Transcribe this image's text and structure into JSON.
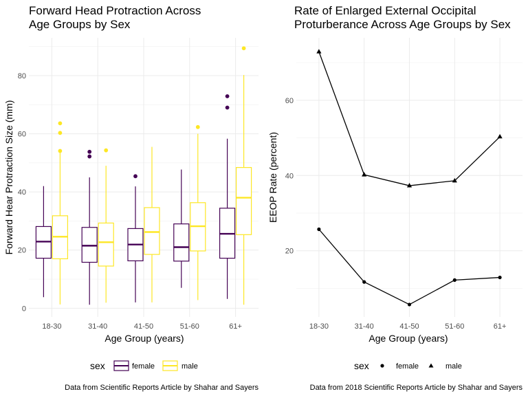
{
  "chart_data": [
    {
      "type": "box",
      "title_lines": [
        "Forward Head Protraction Across",
        "Age Groups by Sex"
      ],
      "xlabel": "Age Group (years)",
      "ylabel": "Forward Hear Protraction Size (mm)",
      "categories": [
        "18-30",
        "31-40",
        "41-50",
        "51-60",
        "61+"
      ],
      "yticks": [
        0,
        20,
        40,
        60,
        80
      ],
      "ylim": [
        -3,
        93
      ],
      "grid": true,
      "legend_placement": "bottom",
      "legend_title": "sex",
      "caption": "Data from Scientific Reports Article by Shahar and Sayers",
      "series": [
        {
          "name": "female",
          "color": "#440154",
          "boxes": [
            {
              "min": 3.8,
              "q1": 17.2,
              "median": 22.9,
              "q3": 28.1,
              "max": 42.0,
              "outliers": []
            },
            {
              "min": 1.2,
              "q1": 15.8,
              "median": 21.5,
              "q3": 27.8,
              "max": 45.0,
              "outliers": [
                52.2,
                53.8
              ]
            },
            {
              "min": 2.0,
              "q1": 16.3,
              "median": 21.9,
              "q3": 27.4,
              "max": 41.9,
              "outliers": [
                45.4
              ]
            },
            {
              "min": 7.0,
              "q1": 16.2,
              "median": 21.0,
              "q3": 29.0,
              "max": 47.7,
              "outliers": []
            },
            {
              "min": 3.2,
              "q1": 17.2,
              "median": 25.6,
              "q3": 34.4,
              "max": 58.3,
              "outliers": [
                69.0,
                72.9
              ]
            }
          ]
        },
        {
          "name": "male",
          "color": "#fde725",
          "boxes": [
            {
              "min": 1.3,
              "q1": 17.0,
              "median": 24.6,
              "q3": 31.8,
              "max": 53.5,
              "outliers": [
                54.1,
                60.3,
                63.6
              ]
            },
            {
              "min": 1.9,
              "q1": 14.5,
              "median": 22.7,
              "q3": 29.3,
              "max": 49.0,
              "outliers": [
                54.3
              ]
            },
            {
              "min": 2.0,
              "q1": 18.5,
              "median": 26.2,
              "q3": 34.6,
              "max": 55.5,
              "outliers": []
            },
            {
              "min": 2.8,
              "q1": 19.7,
              "median": 28.2,
              "q3": 36.3,
              "max": 60.0,
              "outliers": [
                62.3
              ]
            },
            {
              "min": 1.2,
              "q1": 25.3,
              "median": 38.0,
              "q3": 48.4,
              "max": 80.2,
              "outliers": [
                89.4
              ]
            }
          ]
        }
      ]
    },
    {
      "type": "line",
      "title_lines": [
        "Rate of Enlarged External Occipital",
        "Proturberance Across Age Groups by Sex"
      ],
      "xlabel": "Age Group (years)",
      "ylabel": "EEOP Rate (percent)",
      "categories": [
        "18-30",
        "31-40",
        "41-50",
        "51-60",
        "61+"
      ],
      "yticks": [
        20,
        40,
        60
      ],
      "ylim": [
        2.4,
        76.6
      ],
      "grid": true,
      "legend_placement": "bottom",
      "legend_title": "sex",
      "caption": "Data from 2018 Scientific Reports Article by Shahar and Sayers",
      "series": [
        {
          "name": "female",
          "marker": "circle",
          "color": "#000000",
          "values": [
            25.7,
            11.7,
            5.7,
            12.2,
            12.9
          ]
        },
        {
          "name": "male",
          "marker": "triangle",
          "color": "#000000",
          "values": [
            72.9,
            40.2,
            37.3,
            38.6,
            50.3
          ]
        }
      ]
    }
  ]
}
